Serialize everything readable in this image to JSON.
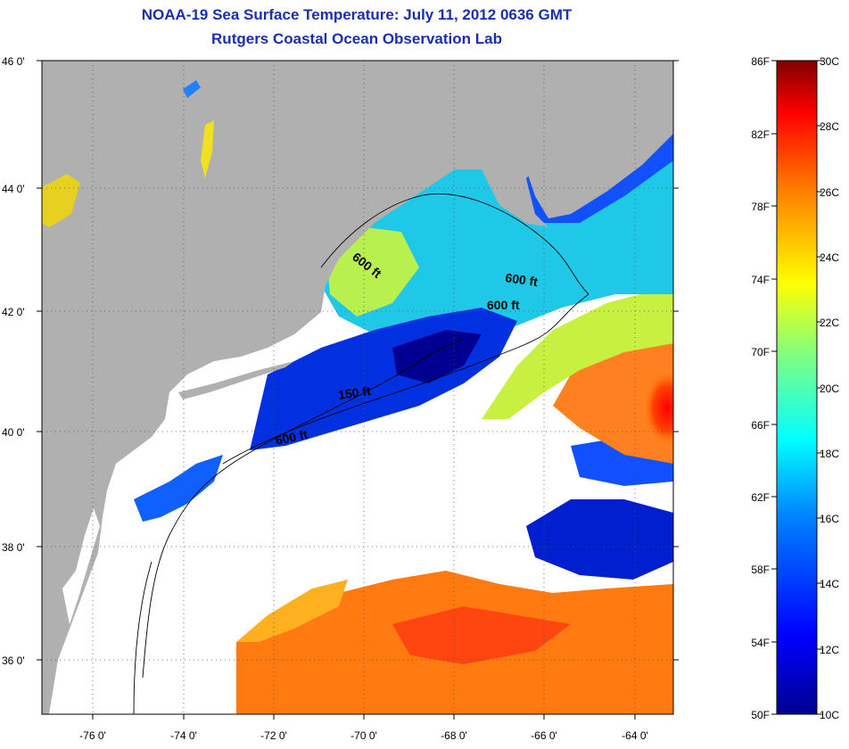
{
  "header": {
    "title": "NOAA-19 Sea Surface Temperature:  July 11, 2012 0636 GMT",
    "subtitle": "Rutgers Coastal Ocean Observation Lab"
  },
  "map": {
    "lat_labels": [
      "46 0'",
      "44 0'",
      "42 0'",
      "40 0'",
      "38 0'",
      "36 0'"
    ],
    "lon_labels": [
      "-76 0'",
      "-74 0'",
      "-72 0'",
      "-70 0'",
      "-68 0'",
      "-66 0'",
      "-64 0'"
    ],
    "lat_range": [
      35,
      46
    ],
    "lon_range": [
      -77,
      -63
    ],
    "contour_labels": [
      "600 ft",
      "600 ft",
      "600 ft",
      "150 ft",
      "600 ft"
    ],
    "colors": {
      "land": "#b0b0b0",
      "cloud": "#ffffff"
    }
  },
  "colorbar": {
    "fahrenheit_labels": [
      "86F",
      "82F",
      "78F",
      "74F",
      "70F",
      "66F",
      "62F",
      "58F",
      "54F",
      "50F"
    ],
    "celsius_labels": [
      "30C",
      "28C",
      "26C",
      "24C",
      "22C",
      "20C",
      "18C",
      "16C",
      "14C",
      "12C",
      "10C"
    ],
    "range_c": [
      10,
      30
    ],
    "colormap": [
      "#00008f",
      "#0000ff",
      "#0080ff",
      "#00ffff",
      "#80ff80",
      "#ffff00",
      "#ff8000",
      "#ff0000",
      "#800000"
    ]
  }
}
